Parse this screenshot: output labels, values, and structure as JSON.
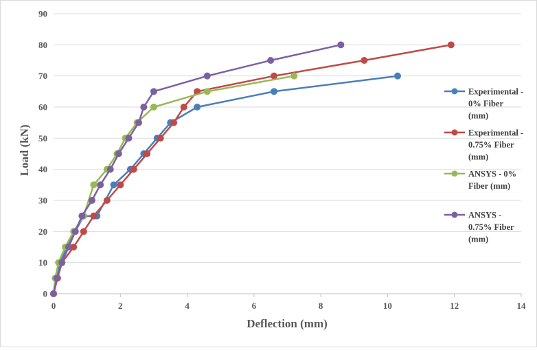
{
  "chart_data": {
    "type": "line",
    "title": "",
    "xlabel": "Deflection (mm)",
    "ylabel": "Load (kN)",
    "xlim": [
      0,
      14
    ],
    "ylim": [
      0,
      90
    ],
    "xticks": [
      0,
      2,
      4,
      6,
      8,
      10,
      12,
      14
    ],
    "yticks": [
      0,
      10,
      20,
      30,
      40,
      50,
      60,
      70,
      80,
      90
    ],
    "grid": "horizontal",
    "legend_position": "right",
    "series": [
      {
        "name": "Experimental - 0% Fiber (mm)",
        "legend_lines": [
          "Experimental -",
          "0% Fiber",
          "(mm)"
        ],
        "color": "#4a7ebb",
        "points": [
          [
            0,
            0
          ],
          [
            0.1,
            5
          ],
          [
            0.2,
            10
          ],
          [
            0.4,
            15
          ],
          [
            0.65,
            20
          ],
          [
            0.9,
            25
          ],
          [
            1.3,
            25
          ],
          [
            1.8,
            35
          ],
          [
            2.3,
            40
          ],
          [
            2.7,
            45
          ],
          [
            3.1,
            50
          ],
          [
            3.5,
            55
          ],
          [
            4.3,
            60
          ],
          [
            6.6,
            65
          ],
          [
            10.3,
            70
          ]
        ]
      },
      {
        "name": "Experimental - 0.75% Fiber (mm)",
        "legend_lines": [
          "Experimental -",
          "0.75% Fiber",
          "(mm)"
        ],
        "color": "#be4b48",
        "points": [
          [
            0,
            0
          ],
          [
            0.12,
            5
          ],
          [
            0.25,
            10
          ],
          [
            0.6,
            15
          ],
          [
            0.9,
            20
          ],
          [
            1.2,
            25
          ],
          [
            1.6,
            30
          ],
          [
            2.0,
            35
          ],
          [
            2.4,
            40
          ],
          [
            2.8,
            45
          ],
          [
            3.2,
            50
          ],
          [
            3.6,
            55
          ],
          [
            3.9,
            60
          ],
          [
            4.3,
            65
          ],
          [
            6.6,
            70
          ],
          [
            9.3,
            75
          ],
          [
            11.9,
            80
          ]
        ]
      },
      {
        "name": "ANSYS - 0% Fiber (mm)",
        "legend_lines": [
          "ANSYS - 0%",
          "Fiber (mm)"
        ],
        "color": "#98b954",
        "points": [
          [
            0,
            0
          ],
          [
            0.05,
            5
          ],
          [
            0.15,
            10
          ],
          [
            0.35,
            15
          ],
          [
            0.6,
            20
          ],
          [
            0.9,
            25
          ],
          [
            1.2,
            35
          ],
          [
            1.6,
            40
          ],
          [
            1.9,
            45
          ],
          [
            2.15,
            50
          ],
          [
            2.5,
            55
          ],
          [
            3.0,
            60
          ],
          [
            4.6,
            65
          ],
          [
            7.2,
            70
          ]
        ]
      },
      {
        "name": "ANSYS - 0.75% Fiber (mm)",
        "legend_lines": [
          "ANSYS -",
          "0.75% Fiber",
          "(mm)"
        ],
        "color": "#7d60a0",
        "points": [
          [
            0,
            0
          ],
          [
            0.1,
            5
          ],
          [
            0.25,
            10
          ],
          [
            0.45,
            15
          ],
          [
            0.65,
            20
          ],
          [
            0.85,
            25
          ],
          [
            1.15,
            30
          ],
          [
            1.4,
            35
          ],
          [
            1.7,
            40
          ],
          [
            1.95,
            45
          ],
          [
            2.25,
            50
          ],
          [
            2.55,
            55
          ],
          [
            2.7,
            60
          ],
          [
            3.0,
            65
          ],
          [
            4.6,
            70
          ],
          [
            6.5,
            75
          ],
          [
            8.6,
            80
          ]
        ]
      }
    ]
  }
}
